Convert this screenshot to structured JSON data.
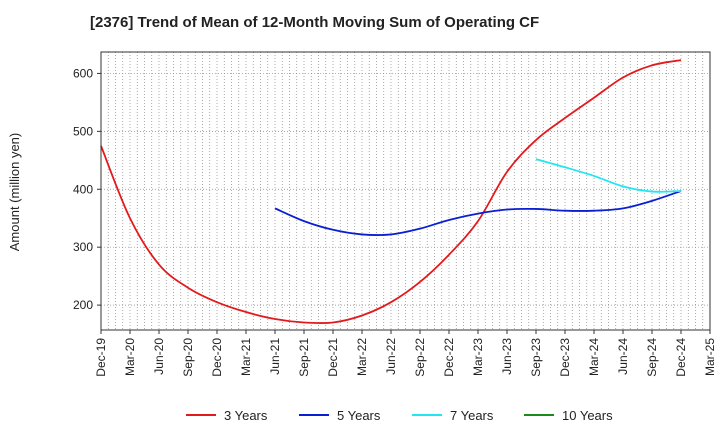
{
  "chart_data": {
    "type": "line",
    "title": "[2376]  Trend of Mean of 12-Month Moving Sum of Operating CF",
    "xlabel": "",
    "ylabel": "Amount (million yen)",
    "ylim": [
      157,
      637
    ],
    "yticks": [
      200,
      300,
      400,
      500,
      600
    ],
    "categories": [
      "Dec-19",
      "Mar-20",
      "Jun-20",
      "Sep-20",
      "Dec-20",
      "Mar-21",
      "Jun-21",
      "Sep-21",
      "Dec-21",
      "Mar-22",
      "Jun-22",
      "Sep-22",
      "Dec-22",
      "Mar-23",
      "Jun-23",
      "Sep-23",
      "Dec-23",
      "Mar-24",
      "Jun-24",
      "Sep-24",
      "Dec-24",
      "Mar-25"
    ],
    "grid": true,
    "legend_position": "bottom",
    "series": [
      {
        "name": "3 Years",
        "color": "#e31a1c",
        "values": [
          475,
          350,
          270,
          230,
          205,
          188,
          176,
          170,
          170,
          182,
          205,
          240,
          287,
          345,
          430,
          485,
          523,
          558,
          593,
          614,
          623,
          null
        ]
      },
      {
        "name": "5 Years",
        "color": "#0a1fd1",
        "values": [
          null,
          null,
          null,
          null,
          null,
          null,
          367,
          345,
          330,
          322,
          322,
          332,
          347,
          358,
          365,
          366,
          363,
          363,
          367,
          380,
          397,
          null
        ]
      },
      {
        "name": "7 Years",
        "color": "#22e6f0",
        "values": [
          null,
          null,
          null,
          null,
          null,
          null,
          null,
          null,
          null,
          null,
          null,
          null,
          null,
          null,
          null,
          452,
          438,
          423,
          405,
          396,
          397,
          null
        ]
      },
      {
        "name": "10 Years",
        "color": "#1a8a1a",
        "values": [
          null,
          null,
          null,
          null,
          null,
          null,
          null,
          null,
          null,
          null,
          null,
          null,
          null,
          null,
          null,
          null,
          null,
          null,
          null,
          null,
          null,
          null
        ]
      }
    ]
  }
}
